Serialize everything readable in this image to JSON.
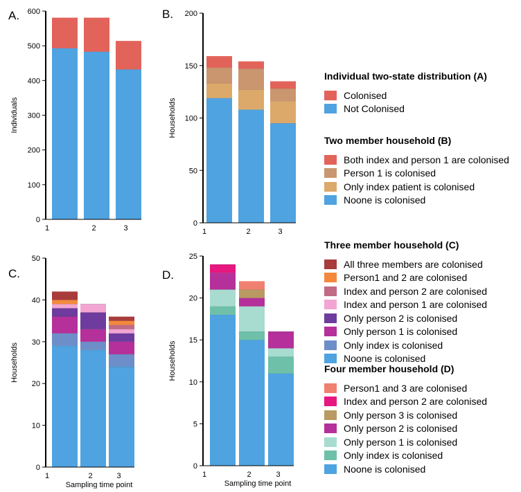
{
  "chart_data": [
    {
      "panel": "A.",
      "type": "bar",
      "stacked": true,
      "categories": [
        "1",
        "2",
        "3"
      ],
      "ylabel": "Individuals",
      "xlabel": "",
      "ylim": [
        0,
        600
      ],
      "yticks": [
        0,
        100,
        200,
        300,
        400,
        500,
        600
      ],
      "legend_title": "Individual two-state distribution (A)",
      "series": [
        {
          "name": "Not Colonised",
          "color": "#4fa3e0",
          "values": [
            493,
            483,
            432
          ]
        },
        {
          "name": "Colonised",
          "color": "#e2635a",
          "values": [
            88,
            98,
            82
          ]
        }
      ],
      "legend_order": [
        "Colonised",
        "Not Colonised"
      ]
    },
    {
      "panel": "B.",
      "type": "bar",
      "stacked": true,
      "categories": [
        "1",
        "2",
        "3"
      ],
      "ylabel": "Households",
      "xlabel": "",
      "ylim": [
        0,
        200
      ],
      "yticks": [
        0,
        50,
        100,
        150,
        200
      ],
      "legend_title": "Two member household (B)",
      "series": [
        {
          "name": "Noone is colonised",
          "color": "#4fa3e0",
          "values": [
            119,
            108,
            95
          ]
        },
        {
          "name": "Only index patient  is colonised",
          "color": "#dca96a",
          "values": [
            14,
            19,
            21
          ]
        },
        {
          "name": "Person 1 is colonised",
          "color": "#c9966f",
          "values": [
            15,
            20,
            12
          ]
        },
        {
          "name": "Both index and person 1 are colonised",
          "color": "#e2635a",
          "values": [
            11,
            7,
            7
          ]
        }
      ],
      "legend_order": [
        "Both index and person 1 are colonised",
        "Person 1 is colonised",
        "Only index patient  is colonised",
        "Noone is colonised"
      ]
    },
    {
      "panel": "C.",
      "type": "bar",
      "stacked": true,
      "categories": [
        "1",
        "2",
        "3"
      ],
      "ylabel": "Households",
      "xlabel": "Sampling time point",
      "ylim": [
        0,
        50
      ],
      "yticks": [
        0,
        10,
        20,
        30,
        40,
        50
      ],
      "legend_title": "Three member household (C)",
      "series": [
        {
          "name": "Noone is colonised",
          "color": "#4fa3e0",
          "values": [
            29,
            28,
            24
          ]
        },
        {
          "name": "Only index is colonised",
          "color": "#6d8ec9",
          "values": [
            3,
            2,
            3
          ]
        },
        {
          "name": "Only person 1 is colonised",
          "color": "#b5309a",
          "values": [
            4,
            3,
            3
          ]
        },
        {
          "name": "Only person 2 is colonised",
          "color": "#6e3b9e",
          "values": [
            2,
            4,
            2
          ]
        },
        {
          "name": "Index and person 1 are colonised",
          "color": "#f2a5d2",
          "values": [
            1,
            2,
            1
          ]
        },
        {
          "name": "Index and person 2 are colonised",
          "color": "#c26a86",
          "values": [
            0,
            0,
            1
          ]
        },
        {
          "name": "Person1 and 2 are colonised",
          "color": "#f4893c",
          "values": [
            1,
            0,
            1
          ]
        },
        {
          "name": "All three members are colonised",
          "color": "#a83b3b",
          "values": [
            2,
            0,
            1
          ]
        }
      ],
      "legend_order": [
        "All three members are colonised",
        "Person1 and 2 are colonised",
        "Index and person 2 are colonised",
        "Index and person 1 are colonised",
        "Only person 2 is colonised",
        "Only person 1 is colonised",
        "Only index is colonised",
        "Noone is colonised"
      ]
    },
    {
      "panel": "D.",
      "type": "bar",
      "stacked": true,
      "categories": [
        "1",
        "2",
        "3"
      ],
      "ylabel": "Households",
      "xlabel": "Sampling time point",
      "ylim": [
        0,
        25
      ],
      "yticks": [
        0,
        5,
        10,
        15,
        20,
        25
      ],
      "legend_title": "Four member household (D)",
      "series": [
        {
          "name": "Noone is colonised",
          "color": "#4fa3e0",
          "values": [
            18,
            15,
            11
          ]
        },
        {
          "name": "Only index is colonised",
          "color": "#6ec0a9",
          "values": [
            1,
            1,
            2
          ]
        },
        {
          "name": "Only person 1 is colonised",
          "color": "#a8dcd0",
          "values": [
            2,
            3,
            1
          ]
        },
        {
          "name": "Only person 2 is colonised",
          "color": "#b5309a",
          "values": [
            2,
            1,
            2
          ]
        },
        {
          "name": "Only person 3 is colonised",
          "color": "#b89a62",
          "values": [
            0,
            1,
            0
          ]
        },
        {
          "name": "Index and person 2 are colonised",
          "color": "#e6177f",
          "values": [
            1,
            0,
            0
          ]
        },
        {
          "name": "Person1 and 3 are colonised",
          "color": "#f08070",
          "values": [
            0,
            1,
            0
          ]
        }
      ],
      "legend_order": [
        "Person1 and 3 are colonised",
        "Index and person 2 are colonised",
        "Only person 3 is colonised",
        "Only person 2 is colonised",
        "Only person 1 is colonised",
        "Only index is colonised",
        "Noone is colonised"
      ]
    }
  ]
}
